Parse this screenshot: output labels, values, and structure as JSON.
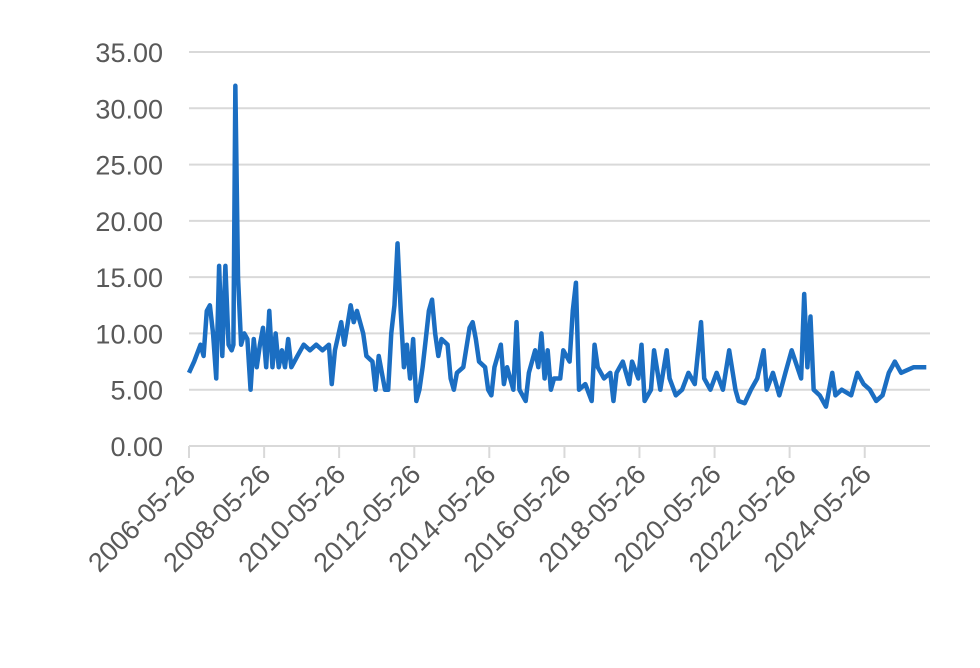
{
  "chart_data": {
    "type": "line",
    "x": [
      "2006-05-26",
      "2006-07-15",
      "2006-09-15",
      "2006-10-15",
      "2006-11-15",
      "2006-12-15",
      "2007-01-15",
      "2007-02-15",
      "2007-03-15",
      "2007-04-15",
      "2007-05-15",
      "2007-06-15",
      "2007-07-15",
      "2007-08-01",
      "2007-08-20",
      "2007-09-15",
      "2007-10-15",
      "2007-11-15",
      "2007-12-15",
      "2008-01-15",
      "2008-02-15",
      "2008-03-15",
      "2008-04-15",
      "2008-05-15",
      "2008-06-15",
      "2008-07-15",
      "2008-08-15",
      "2008-09-15",
      "2008-10-15",
      "2008-11-15",
      "2008-12-15",
      "2009-01-15",
      "2009-02-15",
      "2009-04-15",
      "2009-06-15",
      "2009-08-15",
      "2009-10-15",
      "2009-12-15",
      "2010-02-15",
      "2010-03-15",
      "2010-04-15",
      "2010-06-15",
      "2010-07-15",
      "2010-09-15",
      "2010-10-15",
      "2010-11-15",
      "2011-01-15",
      "2011-02-15",
      "2011-04-15",
      "2011-05-15",
      "2011-06-15",
      "2011-08-15",
      "2011-09-15",
      "2011-10-15",
      "2011-11-15",
      "2011-12-15",
      "2012-01-15",
      "2012-02-15",
      "2012-03-15",
      "2012-04-15",
      "2012-05-15",
      "2012-06-15",
      "2012-07-15",
      "2012-08-15",
      "2012-09-15",
      "2012-10-15",
      "2012-11-15",
      "2012-12-15",
      "2013-01-15",
      "2013-02-15",
      "2013-04-15",
      "2013-05-15",
      "2013-06-15",
      "2013-07-15",
      "2013-09-15",
      "2013-11-15",
      "2013-12-15",
      "2014-01-15",
      "2014-02-15",
      "2014-04-15",
      "2014-05-15",
      "2014-06-15",
      "2014-07-15",
      "2014-09-15",
      "2014-10-15",
      "2014-11-15",
      "2015-01-15",
      "2015-02-15",
      "2015-03-15",
      "2015-05-15",
      "2015-06-15",
      "2015-08-15",
      "2015-09-15",
      "2015-10-15",
      "2015-11-15",
      "2015-12-15",
      "2016-01-15",
      "2016-02-15",
      "2016-04-15",
      "2016-05-15",
      "2016-07-15",
      "2016-08-15",
      "2016-09-15",
      "2016-10-15",
      "2016-12-15",
      "2017-02-15",
      "2017-03-15",
      "2017-04-15",
      "2017-06-15",
      "2017-08-15",
      "2017-09-15",
      "2017-10-15",
      "2017-12-15",
      "2018-02-15",
      "2018-03-15",
      "2018-05-15",
      "2018-06-15",
      "2018-07-15",
      "2018-09-15",
      "2018-10-15",
      "2018-12-15",
      "2019-02-15",
      "2019-03-15",
      "2019-05-15",
      "2019-07-15",
      "2019-09-15",
      "2019-11-15",
      "2020-01-15",
      "2020-02-15",
      "2020-04-15",
      "2020-06-15",
      "2020-08-15",
      "2020-10-15",
      "2020-12-15",
      "2021-01-15",
      "2021-03-15",
      "2021-05-15",
      "2021-07-15",
      "2021-09-15",
      "2021-10-15",
      "2021-12-15",
      "2022-02-15",
      "2022-04-15",
      "2022-06-15",
      "2022-09-15",
      "2022-10-15",
      "2022-11-15",
      "2022-12-15",
      "2023-01-15",
      "2023-03-15",
      "2023-05-15",
      "2023-07-15",
      "2023-08-15",
      "2023-10-15",
      "2024-01-15",
      "2024-03-15",
      "2024-05-15",
      "2024-07-15",
      "2024-09-15",
      "2024-11-15",
      "2025-01-15",
      "2025-03-15",
      "2025-05-15",
      "2025-09-15",
      "2026-01-15"
    ],
    "series": [
      {
        "color": "#1b6ec2",
        "values": [
          6.5,
          7.5,
          9,
          8,
          12,
          12.5,
          10,
          6,
          16,
          8,
          16,
          9,
          8.5,
          9,
          32,
          15,
          9,
          10,
          9.5,
          5,
          9.5,
          7,
          9,
          10.5,
          7,
          12,
          7,
          10,
          7,
          8.5,
          7,
          9.5,
          7,
          8,
          9,
          8.5,
          9,
          8.5,
          9,
          5.5,
          8.5,
          11,
          9,
          12.5,
          11,
          12,
          10,
          8,
          7.5,
          5,
          8,
          5,
          5,
          10,
          12.5,
          18,
          12,
          7,
          9,
          6,
          9.5,
          4,
          5,
          7,
          9.5,
          12,
          13,
          10,
          8,
          9.5,
          9,
          6,
          5,
          6.5,
          7,
          10.5,
          11,
          9.5,
          7.5,
          7,
          5,
          4.5,
          7,
          9,
          5.5,
          7,
          5,
          11,
          5,
          4,
          6.5,
          8.5,
          7,
          10,
          6,
          8.5,
          5,
          6,
          6,
          8.5,
          7.5,
          12,
          14.5,
          5,
          5.5,
          4,
          9,
          7,
          6,
          6.5,
          4,
          6.5,
          7.5,
          5.5,
          7.5,
          6,
          9,
          4,
          5,
          8.5,
          5,
          8.5,
          6,
          4.5,
          5,
          6.5,
          5.5,
          11,
          6,
          5,
          6.5,
          5,
          8.5,
          5,
          4,
          3.8,
          5,
          6,
          8.5,
          5,
          6.5,
          4.5,
          6.5,
          8.5,
          6,
          13.5,
          7,
          11.5,
          5,
          4.5,
          3.5,
          6.5,
          4.5,
          5,
          4.5,
          6.5,
          5.5,
          5,
          4,
          4.5,
          6.5,
          7.5,
          6.5,
          7,
          7
        ]
      }
    ],
    "xlim": [
      "2006-05-26",
      "2026-02-20"
    ],
    "xticks": [
      "2006-05-26",
      "2008-05-26",
      "2010-05-26",
      "2012-05-26",
      "2014-05-26",
      "2016-05-26",
      "2018-05-26",
      "2020-05-26",
      "2022-05-26",
      "2024-05-26"
    ],
    "ylim": [
      0,
      35
    ],
    "yticks": [
      {
        "value": 0,
        "label": "0.00"
      },
      {
        "value": 5,
        "label": "5.00"
      },
      {
        "value": 10,
        "label": "10.00"
      },
      {
        "value": 15,
        "label": "15.00"
      },
      {
        "value": 20,
        "label": "20.00"
      },
      {
        "value": 25,
        "label": "25.00"
      },
      {
        "value": 30,
        "label": "30.00"
      },
      {
        "value": 35,
        "label": "35.00"
      }
    ],
    "grid": true
  }
}
